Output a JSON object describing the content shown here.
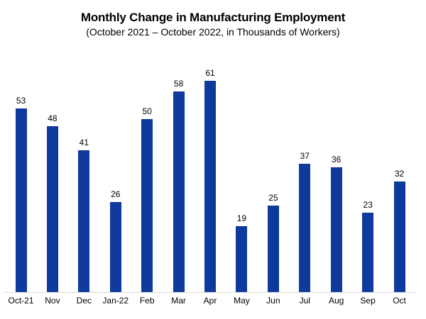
{
  "title": "Monthly Change in Manufacturing Employment",
  "subtitle": "(October 2021 – October 2022, in Thousands of Workers)",
  "colors": {
    "bar": "#0d3a9c",
    "axis_line": "#d8d8d8",
    "text": "#000000",
    "background": "#ffffff"
  },
  "chart_data": {
    "type": "bar",
    "title": "Monthly Change in Manufacturing Employment",
    "subtitle": "(October 2021 – October 2022, in Thousands of Workers)",
    "categories": [
      "Oct-21",
      "Nov",
      "Dec",
      "Jan-22",
      "Feb",
      "Mar",
      "Apr",
      "May",
      "Jun",
      "Jul",
      "Aug",
      "Sep",
      "Oct"
    ],
    "values": [
      53,
      48,
      41,
      26,
      50,
      58,
      61,
      19,
      25,
      37,
      36,
      23,
      32
    ],
    "xlabel": "",
    "ylabel": "",
    "ylim": [
      0,
      65
    ],
    "grid": false,
    "legend": "none",
    "data_labels": true,
    "y_axis_visible": false,
    "x_axis_line": true,
    "bar_color": "#0d3a9c"
  }
}
